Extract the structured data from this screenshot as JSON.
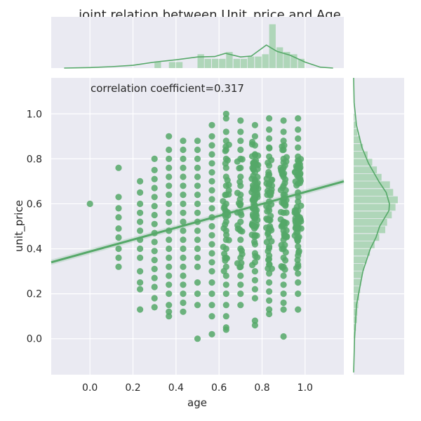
{
  "chart_data": {
    "type": "scatter",
    "title": "joint relation between Unit_price and Age",
    "xlabel": "age",
    "ylabel": "unit_price",
    "annotation": "correlation coefficient=0.317",
    "xlim": [
      -0.18,
      1.18
    ],
    "ylim": [
      -0.16,
      1.16
    ],
    "xticks": [
      "0.0",
      "0.2",
      "0.4",
      "0.6",
      "0.8",
      "1.0"
    ],
    "yticks": [
      "0.0",
      "0.2",
      "0.4",
      "0.6",
      "0.8",
      "1.0"
    ],
    "grid": true,
    "colors": {
      "main": "#55a868",
      "panel_bg": "#eaeaf2",
      "grid": "#ffffff",
      "hist_fill": "#a8d4b2"
    },
    "regression": {
      "x": [
        -0.18,
        1.18
      ],
      "y": [
        0.34,
        0.7
      ]
    },
    "x_values": [
      0.0,
      0.133,
      0.233,
      0.3,
      0.367,
      0.433,
      0.5,
      0.567,
      0.633,
      0.7,
      0.767,
      0.833,
      0.9,
      0.967
    ],
    "columns": [
      {
        "x": 0.0,
        "y": [
          0.6
        ]
      },
      {
        "x": 0.133,
        "y": [
          0.76,
          0.63,
          0.58,
          0.54,
          0.49,
          0.45,
          0.4,
          0.36,
          0.32
        ]
      },
      {
        "x": 0.233,
        "y": [
          0.7,
          0.65,
          0.6,
          0.56,
          0.52,
          0.48,
          0.44,
          0.4,
          0.36,
          0.3,
          0.25,
          0.22,
          0.13
        ]
      },
      {
        "x": 0.3,
        "y": [
          0.8,
          0.75,
          0.71,
          0.67,
          0.63,
          0.59,
          0.55,
          0.51,
          0.47,
          0.43,
          0.39,
          0.35,
          0.31,
          0.27,
          0.23,
          0.18,
          0.14
        ]
      },
      {
        "x": 0.367,
        "y": [
          0.9,
          0.84,
          0.8,
          0.76,
          0.72,
          0.68,
          0.64,
          0.6,
          0.56,
          0.52,
          0.48,
          0.44,
          0.4,
          0.36,
          0.32,
          0.28,
          0.24,
          0.2,
          0.15,
          0.12,
          0.1
        ]
      },
      {
        "x": 0.433,
        "y": [
          0.88,
          0.84,
          0.8,
          0.76,
          0.72,
          0.68,
          0.64,
          0.6,
          0.56,
          0.52,
          0.48,
          0.44,
          0.4,
          0.36,
          0.32,
          0.28,
          0.24,
          0.2,
          0.16,
          0.12
        ]
      },
      {
        "x": 0.5,
        "y": [
          0.88,
          0.84,
          0.8,
          0.76,
          0.72,
          0.68,
          0.64,
          0.6,
          0.56,
          0.52,
          0.48,
          0.44,
          0.4,
          0.36,
          0.32,
          0.25,
          0.2,
          0.15,
          0.0
        ]
      },
      {
        "x": 0.567,
        "y": [
          0.95,
          0.9,
          0.86,
          0.82,
          0.78,
          0.74,
          0.7,
          0.66,
          0.62,
          0.58,
          0.54,
          0.5,
          0.46,
          0.42,
          0.38,
          0.34,
          0.3,
          0.25,
          0.2,
          0.15,
          0.1,
          0.02
        ]
      },
      {
        "x": 0.633,
        "y": [
          1.0,
          0.98,
          0.92,
          0.88,
          0.84,
          0.8,
          0.76,
          0.72,
          0.68,
          0.64,
          0.6,
          0.56,
          0.52,
          0.48,
          0.44,
          0.4,
          0.36,
          0.32,
          0.28,
          0.24,
          0.2,
          0.15,
          0.1,
          0.05,
          0.04
        ]
      },
      {
        "x": 0.7,
        "y": [
          0.97,
          0.92,
          0.88,
          0.84,
          0.8,
          0.76,
          0.72,
          0.68,
          0.64,
          0.6,
          0.56,
          0.52,
          0.48,
          0.44,
          0.4,
          0.36,
          0.32,
          0.28,
          0.24,
          0.2,
          0.15
        ]
      },
      {
        "x": 0.767,
        "y": [
          0.95,
          0.9,
          0.86,
          0.82,
          0.78,
          0.74,
          0.7,
          0.66,
          0.62,
          0.58,
          0.54,
          0.5,
          0.46,
          0.42,
          0.38,
          0.34,
          0.3,
          0.26,
          0.22,
          0.18,
          0.08,
          0.06
        ]
      },
      {
        "x": 0.833,
        "y": [
          0.98,
          0.93,
          0.89,
          0.85,
          0.81,
          0.77,
          0.73,
          0.69,
          0.65,
          0.61,
          0.57,
          0.53,
          0.49,
          0.45,
          0.41,
          0.37,
          0.33,
          0.29,
          0.25,
          0.21,
          0.17,
          0.13,
          0.11
        ]
      },
      {
        "x": 0.9,
        "y": [
          0.97,
          0.92,
          0.88,
          0.84,
          0.8,
          0.76,
          0.72,
          0.68,
          0.64,
          0.6,
          0.56,
          0.52,
          0.48,
          0.44,
          0.4,
          0.36,
          0.32,
          0.28,
          0.24,
          0.2,
          0.16,
          0.13,
          0.01
        ]
      },
      {
        "x": 0.967,
        "y": [
          0.98,
          0.93,
          0.89,
          0.85,
          0.81,
          0.77,
          0.73,
          0.69,
          0.65,
          0.61,
          0.57,
          0.53,
          0.49,
          0.45,
          0.41,
          0.37,
          0.33,
          0.29,
          0.25,
          0.2,
          0.13
        ]
      }
    ],
    "dense_regions": [
      {
        "x": [
          0.6,
          0.98
        ],
        "y": [
          0.3,
          0.88
        ]
      },
      {
        "x": [
          0.72,
          0.98
        ],
        "y": [
          0.45,
          0.8
        ]
      }
    ],
    "marginal_x_hist": {
      "bins": [
        0.0,
        0.033,
        0.067,
        0.1,
        0.133,
        0.167,
        0.2,
        0.233,
        0.267,
        0.3,
        0.333,
        0.367,
        0.4,
        0.433,
        0.467,
        0.5,
        0.533,
        0.567,
        0.6,
        0.633,
        0.667,
        0.7,
        0.733,
        0.767,
        0.8,
        0.833,
        0.867,
        0.9,
        0.933,
        0.967
      ],
      "heights": [
        0.0,
        0.0,
        0.0,
        0.0,
        0.0,
        0.0,
        0.0,
        0.0,
        0.0,
        0.13,
        0.0,
        0.13,
        0.13,
        0.0,
        0.0,
        0.3,
        0.2,
        0.2,
        0.2,
        0.35,
        0.2,
        0.2,
        0.25,
        0.25,
        0.3,
        0.95,
        0.45,
        0.35,
        0.3,
        0.2
      ],
      "kde": [
        [
          -0.12,
          0.0
        ],
        [
          0.0,
          0.01
        ],
        [
          0.1,
          0.03
        ],
        [
          0.2,
          0.06
        ],
        [
          0.3,
          0.13
        ],
        [
          0.4,
          0.18
        ],
        [
          0.5,
          0.24
        ],
        [
          0.58,
          0.25
        ],
        [
          0.63,
          0.32
        ],
        [
          0.7,
          0.24
        ],
        [
          0.75,
          0.26
        ],
        [
          0.82,
          0.5
        ],
        [
          0.87,
          0.36
        ],
        [
          0.93,
          0.28
        ],
        [
          1.0,
          0.13
        ],
        [
          1.07,
          0.02
        ],
        [
          1.13,
          0.0
        ]
      ]
    },
    "marginal_y_hist": {
      "bins": [
        0.0,
        0.033,
        0.067,
        0.1,
        0.133,
        0.167,
        0.2,
        0.233,
        0.267,
        0.3,
        0.333,
        0.367,
        0.4,
        0.433,
        0.467,
        0.5,
        0.533,
        0.567,
        0.6,
        0.633,
        0.667,
        0.7,
        0.733,
        0.767,
        0.8,
        0.833,
        0.867,
        0.9,
        0.933,
        0.967
      ],
      "widths": [
        0.03,
        0.05,
        0.07,
        0.08,
        0.1,
        0.12,
        0.14,
        0.16,
        0.18,
        0.22,
        0.28,
        0.35,
        0.45,
        0.55,
        0.68,
        0.72,
        0.82,
        0.9,
        0.95,
        0.85,
        0.78,
        0.6,
        0.5,
        0.4,
        0.3,
        0.2,
        0.14,
        0.08,
        0.05,
        0.02
      ],
      "kde": [
        [
          -0.15,
          0.0
        ],
        [
          0.0,
          0.02
        ],
        [
          0.15,
          0.06
        ],
        [
          0.3,
          0.2
        ],
        [
          0.4,
          0.36
        ],
        [
          0.45,
          0.48
        ],
        [
          0.5,
          0.56
        ],
        [
          0.57,
          0.76
        ],
        [
          0.6,
          0.77
        ],
        [
          0.65,
          0.7
        ],
        [
          0.7,
          0.54
        ],
        [
          0.78,
          0.32
        ],
        [
          0.85,
          0.18
        ],
        [
          0.95,
          0.06
        ],
        [
          1.05,
          0.01
        ],
        [
          1.16,
          0.0
        ]
      ]
    }
  }
}
